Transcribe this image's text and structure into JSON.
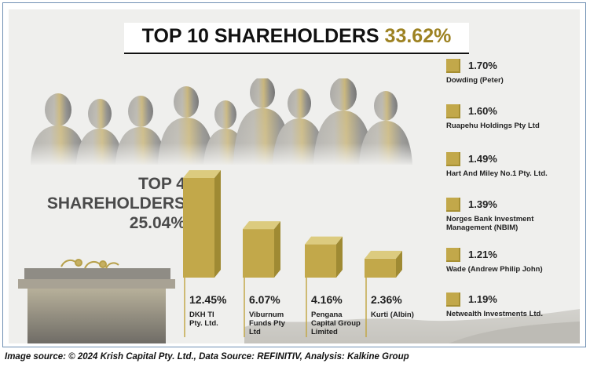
{
  "title": {
    "text": "TOP 10 SHAREHOLDERS",
    "percent": "33.62%"
  },
  "top4": {
    "line1": "TOP 4",
    "line2": "SHAREHOLDERS",
    "percent": "25.04%"
  },
  "caption": "Image source: © 2024 Krish Capital Pty. Ltd., Data Source: REFINITIV, Analysis: Kalkine Group",
  "colors": {
    "accent_gold": "#c2a84a",
    "title_percent": "#9d8222",
    "background": "#efefed"
  },
  "chart_data": {
    "type": "bar",
    "title": "TOP 10 SHAREHOLDERS 33.62%",
    "categories": [
      "DKH TI Pty. Ltd.",
      "Viburnum Funds Pty Ltd",
      "Pengana Capital Group Limited",
      "Kurti (Albin)"
    ],
    "values": [
      12.45,
      6.07,
      4.16,
      2.36
    ],
    "value_labels": [
      "12.45%",
      "6.07%",
      "4.16%",
      "2.36%"
    ],
    "name_lines": [
      [
        "DKH TI",
        "Pty. Ltd."
      ],
      [
        "Viburnum",
        "Funds Pty",
        "Ltd"
      ],
      [
        "Pengana",
        "Capital Group",
        "Limited"
      ],
      [
        "Kurti (Albin)"
      ]
    ],
    "unit": "%",
    "legend": [
      {
        "value": "1.70%",
        "lines": [
          "Dowding (Peter)"
        ]
      },
      {
        "value": "1.60%",
        "lines": [
          "Ruapehu Holdings Pty Ltd"
        ]
      },
      {
        "value": "1.49%",
        "lines": [
          "Hart And Miley No.1 Pty. Ltd."
        ]
      },
      {
        "value": "1.39%",
        "lines": [
          "Norges Bank Investment",
          "Management (NBIM)"
        ]
      },
      {
        "value": "1.21%",
        "lines": [
          "Wade (Andrew Philip John)"
        ]
      },
      {
        "value": "1.19%",
        "lines": [
          "Netwealth Investments Ltd."
        ]
      }
    ],
    "legend_values": [
      1.7,
      1.6,
      1.49,
      1.39,
      1.21,
      1.19
    ]
  }
}
